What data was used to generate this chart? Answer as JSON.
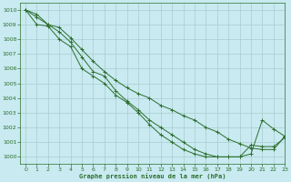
{
  "title": "Graphe pression niveau de la mer (hPa)",
  "bg_color": "#c8eaf0",
  "grid_color": "#a8ccd0",
  "line_color": "#2d6e2d",
  "xlim": [
    -0.5,
    23
  ],
  "ylim": [
    999.5,
    1010.5
  ],
  "yticks": [
    1000,
    1001,
    1002,
    1003,
    1004,
    1005,
    1006,
    1007,
    1008,
    1009,
    1010
  ],
  "xticks": [
    0,
    1,
    2,
    3,
    4,
    5,
    6,
    7,
    8,
    9,
    10,
    11,
    12,
    13,
    14,
    15,
    16,
    17,
    18,
    19,
    20,
    21,
    22,
    23
  ],
  "series": [
    [
      1010.0,
      1009.7,
      1009.0,
      1008.8,
      1008.1,
      1007.3,
      1006.5,
      1005.8,
      1005.2,
      1004.7,
      1004.3,
      1004.0,
      1003.5,
      1003.2,
      1002.8,
      1002.5,
      1002.0,
      1001.7,
      1001.2,
      1000.9,
      1000.6,
      1000.5,
      1000.5,
      1001.4
    ],
    [
      1010.0,
      1009.5,
      1009.0,
      1008.5,
      1007.8,
      1006.8,
      1005.8,
      1005.5,
      1004.5,
      1003.8,
      1003.2,
      1002.5,
      1002.0,
      1001.5,
      1001.0,
      1000.5,
      1000.2,
      1000.0,
      1000.0,
      1000.0,
      1000.2,
      1002.5,
      1001.9,
      1001.4
    ],
    [
      1010.0,
      1009.0,
      1008.9,
      1008.0,
      1007.5,
      1006.0,
      1005.5,
      1005.0,
      1004.2,
      1003.7,
      1003.0,
      1002.2,
      1001.5,
      1001.0,
      1000.5,
      1000.2,
      1000.0,
      1000.0,
      1000.0,
      1000.0,
      1000.8,
      1000.7,
      1000.7,
      1001.3
    ]
  ]
}
